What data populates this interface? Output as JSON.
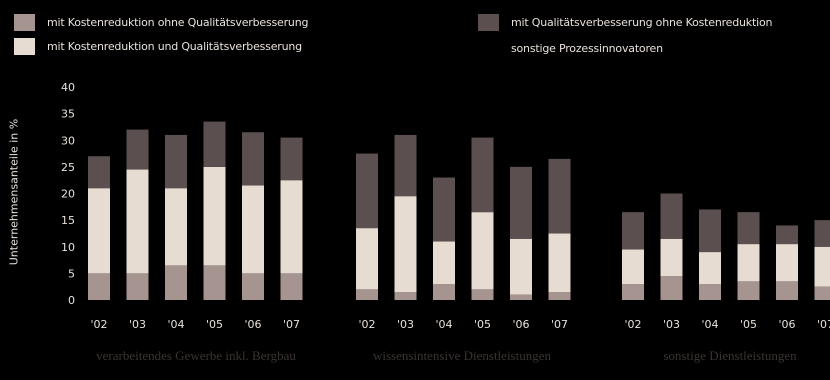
{
  "legend": [
    {
      "label": "mit Kostenreduktion ohne Qualitätsverbesserung",
      "color": "#a69490"
    },
    {
      "label": "mit Kostenreduktion und Qualitätsverbesserung",
      "color": "#e7dcd2"
    },
    {
      "label": "mit Qualitätsverbesserung ohne Kostenreduktion",
      "color": "#5b504f"
    },
    {
      "label": "sonstige Prozessinnovatoren",
      "color": ""
    }
  ],
  "chart_data": {
    "type": "bar",
    "stacked": true,
    "ylabel": "Unternehmensanteile in %",
    "ylim": [
      0,
      40
    ],
    "yticks": [
      0,
      5,
      10,
      15,
      20,
      25,
      30,
      35,
      40
    ],
    "grid": false,
    "legend_position": "top",
    "groups": [
      {
        "label": "verarbeitendes Gewerbe inkl. Bergbau",
        "categories": [
          "'02",
          "'03",
          "'04",
          "'05",
          "'06",
          "'07"
        ],
        "series": [
          {
            "name": "mit Kostenreduktion ohne Qualitätsverbesserung",
            "values": [
              5,
              5,
              6.5,
              6.5,
              5,
              5
            ]
          },
          {
            "name": "mit Kostenreduktion und Qualitätsverbesserung",
            "values": [
              16,
              19.5,
              14.5,
              18.5,
              16.5,
              17.5
            ]
          },
          {
            "name": "mit Qualitätsverbesserung ohne Kostenreduktion",
            "values": [
              6,
              7.5,
              10,
              8.5,
              10,
              8
            ]
          }
        ]
      },
      {
        "label": "wissensintensive Dienstleistungen",
        "categories": [
          "'02",
          "'03",
          "'04",
          "'05",
          "'06",
          "'07"
        ],
        "series": [
          {
            "name": "mit Kostenreduktion ohne Qualitätsverbesserung",
            "values": [
              2,
              1.5,
              3,
              2,
              1,
              1.5
            ]
          },
          {
            "name": "mit Kostenreduktion und Qualitätsverbesserung",
            "values": [
              11.5,
              18,
              8,
              14.5,
              10.5,
              11
            ]
          },
          {
            "name": "mit Qualitätsverbesserung ohne Kostenreduktion",
            "values": [
              14,
              11.5,
              12,
              14,
              13.5,
              14
            ]
          }
        ]
      },
      {
        "label": "sonstige Dienstleistungen",
        "categories": [
          "'02",
          "'03",
          "'04",
          "'05",
          "'06",
          "'07"
        ],
        "series": [
          {
            "name": "mit Kostenreduktion ohne Qualitätsverbesserung",
            "values": [
              3,
              4.5,
              3,
              3.5,
              3.5,
              2.5
            ]
          },
          {
            "name": "mit Kostenreduktion und Qualitätsverbesserung",
            "values": [
              6.5,
              7,
              6,
              7,
              7,
              7.5
            ]
          },
          {
            "name": "mit Qualitätsverbesserung ohne Kostenreduktion",
            "values": [
              7,
              8.5,
              8,
              6,
              3.5,
              5
            ]
          }
        ]
      }
    ]
  }
}
